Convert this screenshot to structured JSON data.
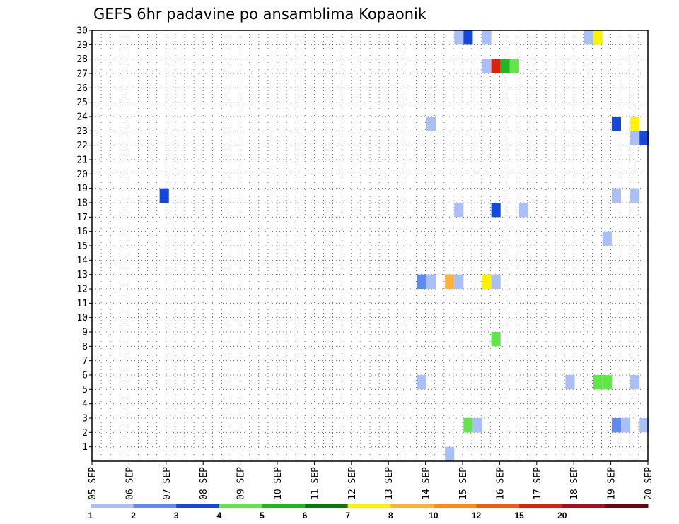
{
  "chart_data": {
    "type": "heatmap",
    "title": "GEFS 6hr padavine po ansamblima Kopaonik",
    "xlabel": "",
    "ylabel": "",
    "x_tick_labels": [
      "05 SEP",
      "06 SEP",
      "07 SEP",
      "08 SEP",
      "09 SEP",
      "10 SEP",
      "11 SEP",
      "12 SEP",
      "13 SEP",
      "14 SEP",
      "15 SEP",
      "16 SEP",
      "17 SEP",
      "18 SEP",
      "19 SEP",
      "20 SEP"
    ],
    "xlim_days": [
      0,
      15
    ],
    "y_ticks": [
      1,
      2,
      3,
      4,
      5,
      6,
      7,
      8,
      9,
      10,
      11,
      12,
      13,
      14,
      15,
      16,
      17,
      18,
      19,
      20,
      21,
      22,
      23,
      24,
      25,
      26,
      27,
      28,
      29,
      30
    ],
    "ylim": [
      0,
      30
    ],
    "grid": true,
    "color_scale": {
      "bins": [
        {
          "upper": 1,
          "color": "#a9bff5"
        },
        {
          "upper": 2,
          "color": "#5f8af0"
        },
        {
          "upper": 3,
          "color": "#1448dc"
        },
        {
          "upper": 4,
          "color": "#63e44a"
        },
        {
          "upper": 5,
          "color": "#1fb81f"
        },
        {
          "upper": 6,
          "color": "#0a7a0a"
        },
        {
          "upper": 7,
          "color": "#fff200"
        },
        {
          "upper": 8,
          "color": "#ffb13a"
        },
        {
          "upper": 10,
          "color": "#ff8a14"
        },
        {
          "upper": 12,
          "color": "#f45a14"
        },
        {
          "upper": 15,
          "color": "#d9230e"
        },
        {
          "upper": 20,
          "color": "#a4101a"
        },
        {
          "upper": 30,
          "color": "#6b0310"
        }
      ],
      "tick_labels": [
        "1",
        "2",
        "3",
        "4",
        "5",
        "6",
        "7",
        "8",
        "10",
        "12",
        "15",
        "20"
      ]
    },
    "cells": [
      {
        "day": 1.95,
        "member": 18.5,
        "color": "#1448dc"
      },
      {
        "day": 8.9,
        "member": 12.5,
        "color": "#5f8af0"
      },
      {
        "day": 9.15,
        "member": 12.5,
        "color": "#a9bff5"
      },
      {
        "day": 9.15,
        "member": 23.5,
        "color": "#a9bff5"
      },
      {
        "day": 8.9,
        "member": 5.5,
        "color": "#a9bff5"
      },
      {
        "day": 9.65,
        "member": 0.5,
        "color": "#a9bff5"
      },
      {
        "day": 9.65,
        "member": 12.5,
        "color": "#ffb13a"
      },
      {
        "day": 9.9,
        "member": 12.5,
        "color": "#a9bff5"
      },
      {
        "day": 9.9,
        "member": 17.5,
        "color": "#a9bff5"
      },
      {
        "day": 9.9,
        "member": 29.5,
        "color": "#a9bff5"
      },
      {
        "day": 10.15,
        "member": 29.5,
        "color": "#1448dc"
      },
      {
        "day": 10.15,
        "member": 2.5,
        "color": "#63e44a"
      },
      {
        "day": 10.4,
        "member": 2.5,
        "color": "#a9bff5"
      },
      {
        "day": 10.65,
        "member": 29.5,
        "color": "#a9bff5"
      },
      {
        "day": 10.65,
        "member": 27.5,
        "color": "#a9bff5"
      },
      {
        "day": 10.65,
        "member": 12.5,
        "color": "#fff200"
      },
      {
        "day": 10.9,
        "member": 12.5,
        "color": "#a9bff5"
      },
      {
        "day": 10.9,
        "member": 27.5,
        "color": "#d9230e"
      },
      {
        "day": 10.9,
        "member": 17.5,
        "color": "#1448dc"
      },
      {
        "day": 10.9,
        "member": 8.5,
        "color": "#63e44a"
      },
      {
        "day": 11.15,
        "member": 27.5,
        "color": "#1fb81f"
      },
      {
        "day": 11.4,
        "member": 27.5,
        "color": "#63e44a"
      },
      {
        "day": 11.65,
        "member": 17.5,
        "color": "#a9bff5"
      },
      {
        "day": 12.9,
        "member": 5.5,
        "color": "#a9bff5"
      },
      {
        "day": 13.4,
        "member": 29.5,
        "color": "#a9bff5"
      },
      {
        "day": 13.65,
        "member": 29.5,
        "color": "#fff200"
      },
      {
        "day": 13.65,
        "member": 5.5,
        "color": "#63e44a"
      },
      {
        "day": 13.9,
        "member": 5.5,
        "color": "#63e44a"
      },
      {
        "day": 13.9,
        "member": 15.5,
        "color": "#a9bff5"
      },
      {
        "day": 14.15,
        "member": 23.5,
        "color": "#1448dc"
      },
      {
        "day": 14.15,
        "member": 18.5,
        "color": "#a9bff5"
      },
      {
        "day": 14.15,
        "member": 2.5,
        "color": "#5f8af0"
      },
      {
        "day": 14.4,
        "member": 2.5,
        "color": "#a9bff5"
      },
      {
        "day": 14.65,
        "member": 23.5,
        "color": "#fff200"
      },
      {
        "day": 14.65,
        "member": 22.5,
        "color": "#a9bff5"
      },
      {
        "day": 14.65,
        "member": 18.5,
        "color": "#a9bff5"
      },
      {
        "day": 14.65,
        "member": 5.5,
        "color": "#a9bff5"
      },
      {
        "day": 14.9,
        "member": 22.5,
        "color": "#1448dc"
      },
      {
        "day": 14.9,
        "member": 2.5,
        "color": "#a9bff5"
      }
    ]
  }
}
